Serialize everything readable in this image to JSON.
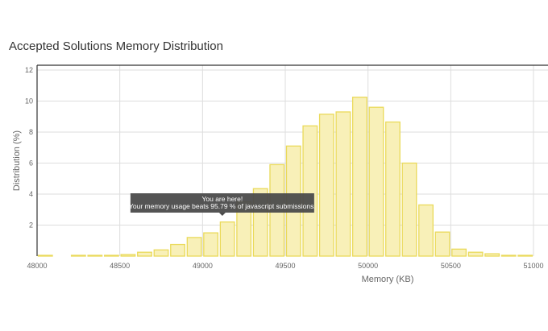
{
  "title": "Accepted Solutions Memory Distribution",
  "chart_data": {
    "type": "bar",
    "title": "Accepted Solutions Memory Distribution",
    "xlabel": "Memory (KB)",
    "ylabel": "Distribution (%)",
    "xlim": [
      48000,
      51000
    ],
    "ylim": [
      0,
      12
    ],
    "xticks": [
      48000,
      48500,
      49000,
      49500,
      50000,
      50500,
      51000
    ],
    "yticks": [
      2,
      4,
      6,
      8,
      10,
      12
    ],
    "bin_width": 100,
    "x": [
      48000,
      48100,
      48200,
      48300,
      48400,
      48500,
      48600,
      48700,
      48800,
      48900,
      49000,
      49100,
      49200,
      49300,
      49400,
      49500,
      49600,
      49700,
      49800,
      49900,
      50000,
      50100,
      50200,
      50300,
      50400,
      50500,
      50600,
      50700,
      50800,
      50900
    ],
    "values": [
      0.05,
      0,
      0.05,
      0.05,
      0.05,
      0.1,
      0.25,
      0.4,
      0.75,
      1.2,
      1.5,
      2.2,
      3.5,
      4.35,
      5.9,
      7.1,
      8.4,
      9.15,
      9.3,
      10.25,
      9.6,
      8.65,
      6.0,
      3.3,
      1.55,
      0.45,
      0.25,
      0.15,
      0.05,
      0.05
    ],
    "grid": true,
    "bar_color": "#f8f0b8",
    "bar_edge_color": "#eada5a",
    "tooltip": {
      "line1": "You are here!",
      "line2": "Your memory usage beats 95.79 % of javascript submissions.",
      "x": 49100
    }
  }
}
